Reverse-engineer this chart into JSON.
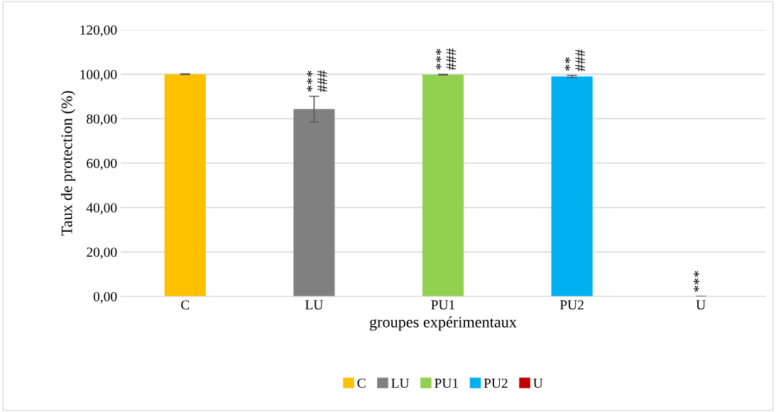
{
  "chart_data": {
    "type": "bar",
    "xlabel": "groupes expérimentaux",
    "ylabel": "Taux de protection (%)",
    "categories": [
      "C",
      "LU",
      "PU1",
      "PU2",
      "U"
    ],
    "series": [
      {
        "name": "C",
        "color": "#ffc000",
        "values": [
          100,
          null,
          null,
          null,
          null
        ],
        "errors": [
          0.2,
          null,
          null,
          null,
          null
        ]
      },
      {
        "name": "LU",
        "color": "#808080",
        "values": [
          null,
          84.3,
          null,
          null,
          null
        ],
        "errors": [
          null,
          5.8,
          null,
          null,
          null
        ]
      },
      {
        "name": "PU1",
        "color": "#92d050",
        "values": [
          null,
          null,
          99.8,
          null,
          null
        ],
        "errors": [
          null,
          null,
          0.2,
          null,
          null
        ]
      },
      {
        "name": "PU2",
        "color": "#00b0f0",
        "values": [
          null,
          null,
          null,
          99.0,
          null
        ],
        "errors": [
          null,
          null,
          null,
          0.5,
          null
        ]
      },
      {
        "name": "U",
        "color": "#c00000",
        "values": [
          null,
          null,
          null,
          null,
          0
        ],
        "errors": [
          null,
          null,
          null,
          null,
          0
        ]
      }
    ],
    "ylim": [
      0,
      120
    ],
    "yticks": [
      {
        "value": 0,
        "label": "0,00"
      },
      {
        "value": 20,
        "label": "20,00"
      },
      {
        "value": 40,
        "label": "40,00"
      },
      {
        "value": 60,
        "label": "60,00"
      },
      {
        "value": 80,
        "label": "80,00"
      },
      {
        "value": 100,
        "label": "100,00"
      },
      {
        "value": 120,
        "label": "120,00"
      }
    ],
    "grid": "y",
    "legend": "bottom",
    "annotations": [
      {
        "text": "***",
        "x": "LU",
        "y": 90.1
      },
      {
        "text": "###",
        "x": "LU",
        "y": 90.1
      },
      {
        "text": "***",
        "x": "PU1",
        "y": 100
      },
      {
        "text": "###",
        "x": "PU1",
        "y": 100
      },
      {
        "text": "**",
        "x": "PU2",
        "y": 99.5
      },
      {
        "text": "###",
        "x": "PU2",
        "y": 99.5
      },
      {
        "text": "***",
        "x": "U",
        "y": 0
      }
    ]
  }
}
